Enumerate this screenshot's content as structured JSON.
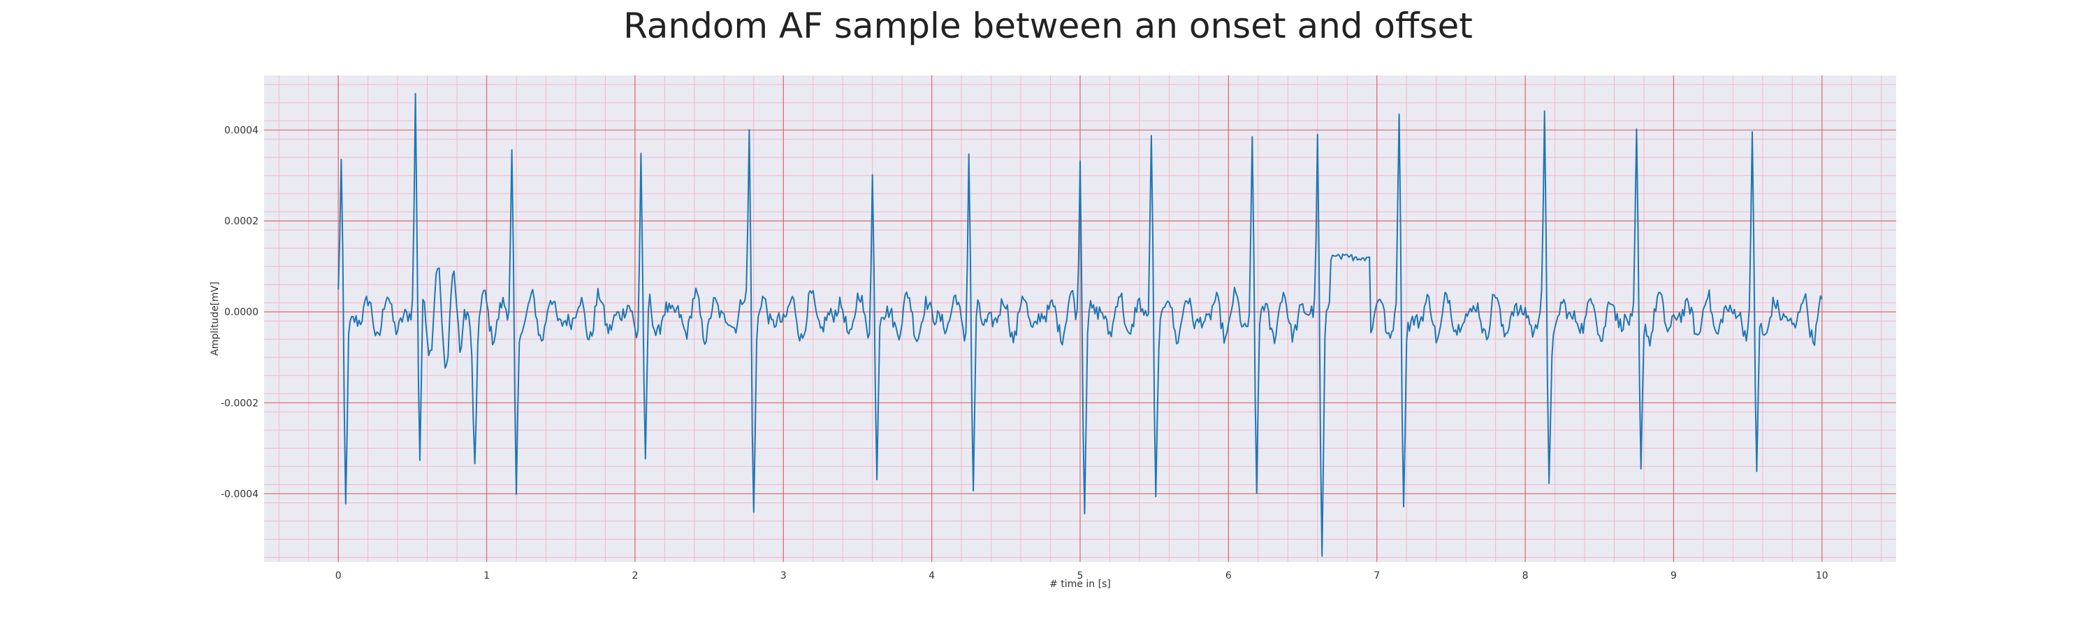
{
  "chart_data": {
    "type": "line",
    "title": "Random AF sample between an onset and offset",
    "xlabel": "# time in [s]",
    "ylabel": "Amplitude[mV]",
    "xlim": [
      -0.5,
      10.5
    ],
    "ylim": [
      -0.00055,
      0.00052
    ],
    "x_ticks": [
      0,
      1,
      2,
      3,
      4,
      5,
      6,
      7,
      8,
      9,
      10
    ],
    "x_tick_labels": [
      "0",
      "1",
      "2",
      "3",
      "4",
      "5",
      "6",
      "7",
      "8",
      "9",
      "10"
    ],
    "y_ticks": [
      -0.0004,
      -0.0002,
      0.0,
      0.0002,
      0.0004
    ],
    "y_tick_labels": [
      "-0.0004",
      "-0.0002",
      "0.0000",
      "0.0002",
      "0.0004"
    ],
    "grid": true,
    "grid_color": "#e06666",
    "minor_grid": true,
    "background_color": "#eaeaf2",
    "series": [
      {
        "color": "#1f77b4",
        "r_peaks": [
          {
            "t": 0.02,
            "up": 0.00031,
            "down": -0.00041
          },
          {
            "t": 0.52,
            "up": 0.00046,
            "down": -0.00032
          },
          {
            "t": 1.17,
            "up": 0.00036,
            "down": -0.00039
          },
          {
            "t": 2.04,
            "up": 0.00038,
            "down": -0.00037
          },
          {
            "t": 2.77,
            "up": 0.00042,
            "down": -0.00039
          },
          {
            "t": 3.6,
            "up": 0.00033,
            "down": -0.00036
          },
          {
            "t": 4.25,
            "up": 0.00038,
            "down": -0.00043
          },
          {
            "t": 5.0,
            "up": 0.00038,
            "down": -0.00041
          },
          {
            "t": 5.48,
            "up": 0.00041,
            "down": -0.00039
          },
          {
            "t": 6.16,
            "up": 0.00038,
            "down": -0.00038
          },
          {
            "t": 6.6,
            "up": 0.0004,
            "down": -0.0005
          },
          {
            "t": 7.15,
            "up": 0.00042,
            "down": -0.00044
          },
          {
            "t": 8.13,
            "up": 0.00039,
            "down": -0.00035
          },
          {
            "t": 8.75,
            "up": 0.00039,
            "down": -0.00038
          },
          {
            "t": 9.53,
            "up": 0.00038,
            "down": -0.0004
          }
        ],
        "extra_dips": [
          {
            "t": 0.92,
            "value": -0.00028
          }
        ],
        "notes": "Baseline fibrillatory waves oscillate between about -0.00008 and 0.00006; larger oscillations (up to 0.00014) between 0.55 s and 0.85 s; a raised plateau near 0.00012 between 6.68 s and 6.95 s."
      }
    ]
  }
}
